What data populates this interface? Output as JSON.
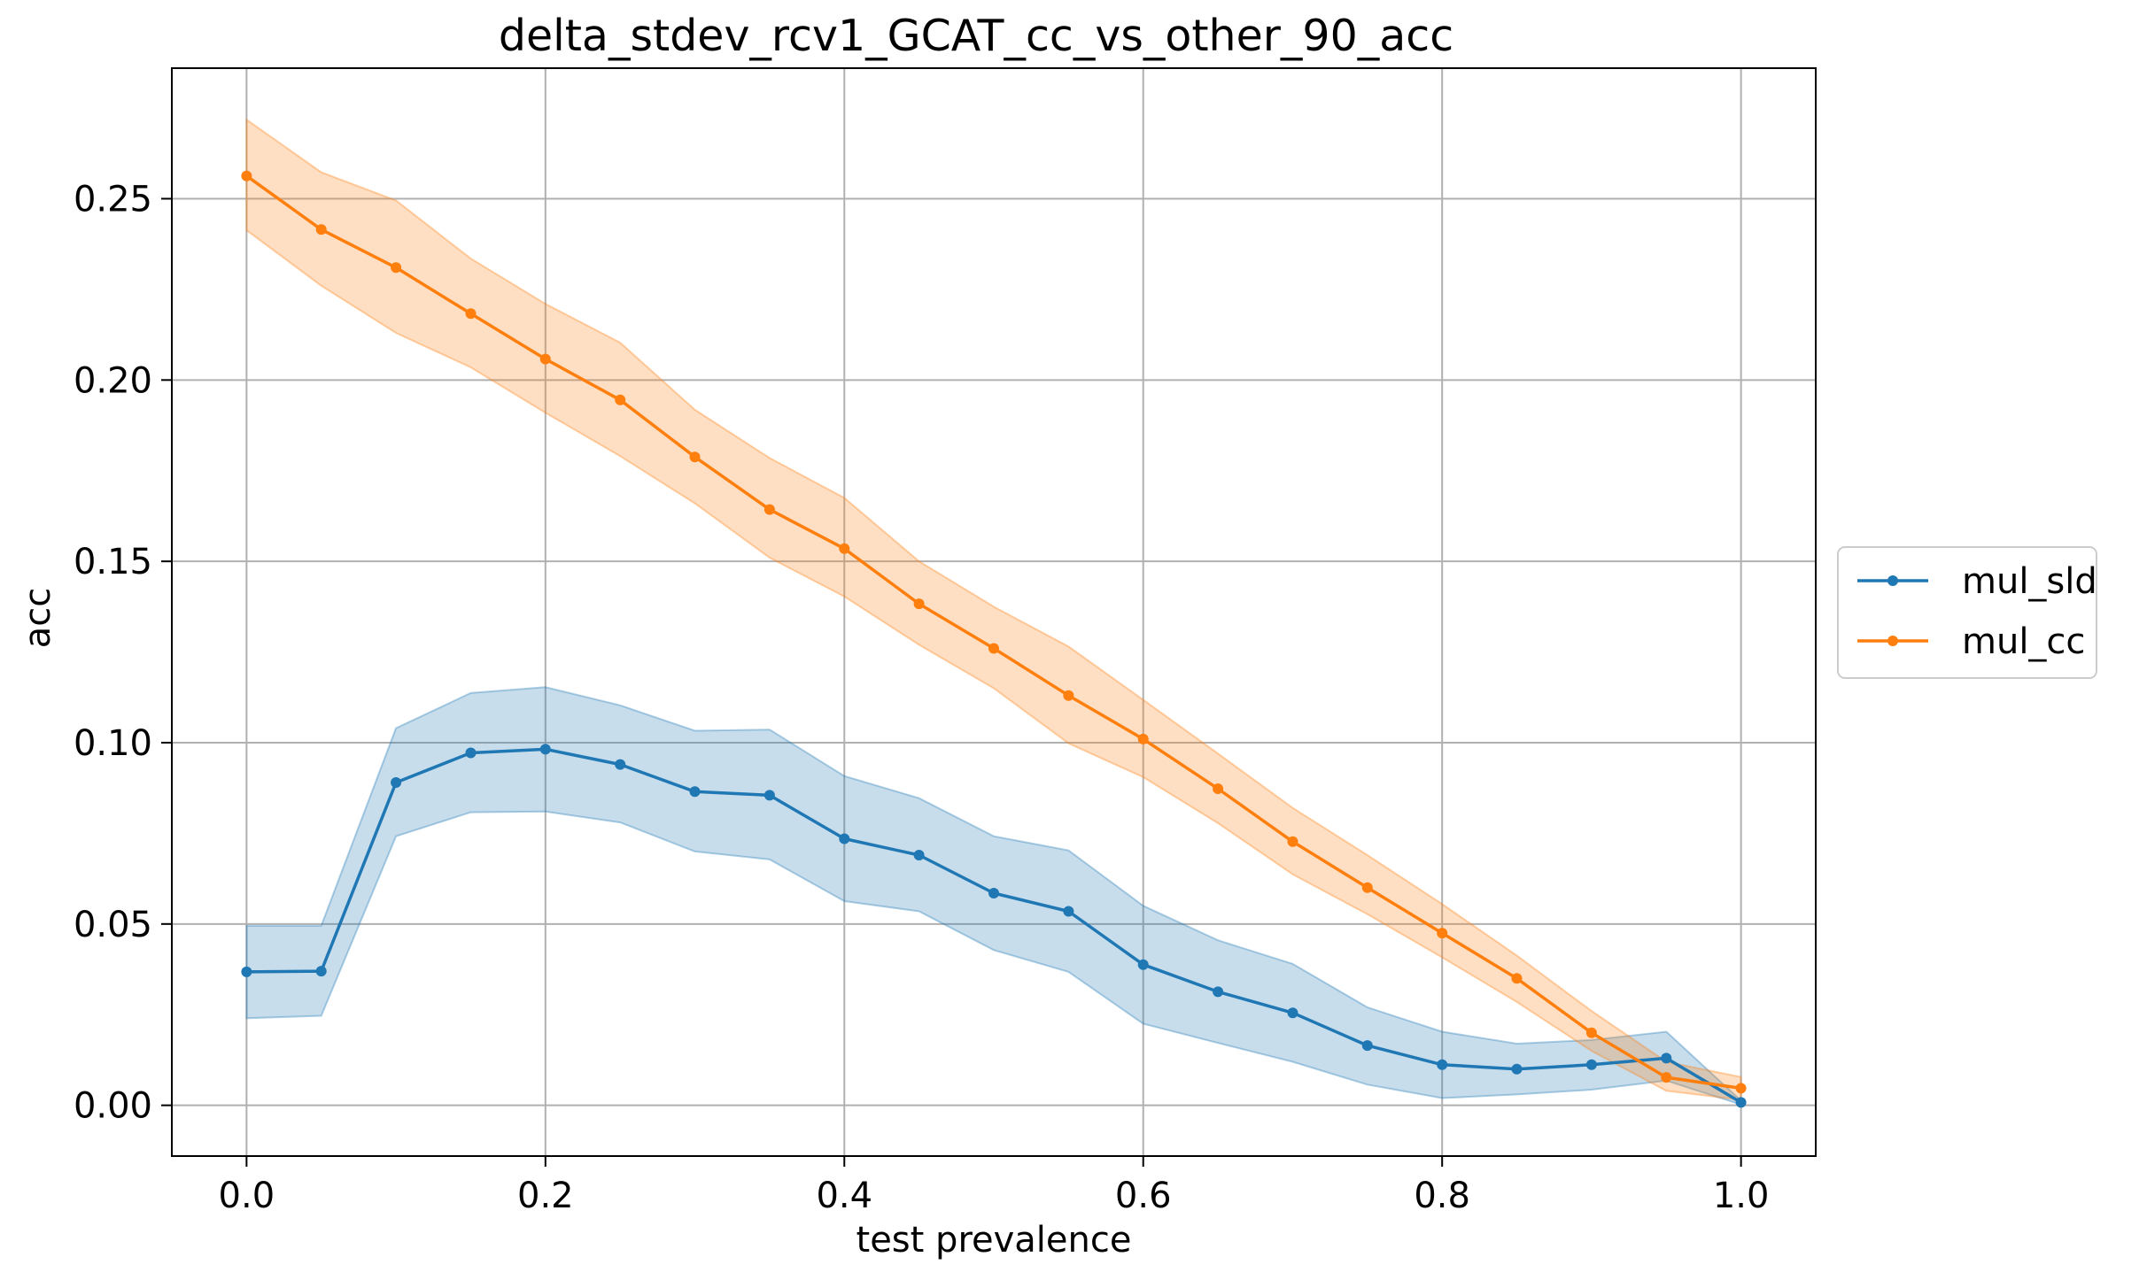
{
  "chart_data": {
    "type": "line",
    "title": "delta_stdev_rcv1_GCAT_cc_vs_other_90_acc",
    "xlabel": "test prevalence",
    "ylabel": "acc",
    "xlim": [
      -0.05,
      1.05
    ],
    "ylim": [
      -0.014,
      0.286
    ],
    "xticks": [
      0.0,
      0.2,
      0.4,
      0.6,
      0.8,
      1.0
    ],
    "xtick_labels": [
      "0.0",
      "0.2",
      "0.4",
      "0.6",
      "0.8",
      "1.0"
    ],
    "yticks": [
      0.0,
      0.05,
      0.1,
      0.15,
      0.2,
      0.25
    ],
    "ytick_labels": [
      "0.00",
      "0.05",
      "0.10",
      "0.15",
      "0.20",
      "0.25"
    ],
    "grid": true,
    "legend_position": "outside-right",
    "x": [
      0.0,
      0.05,
      0.1,
      0.15,
      0.2,
      0.25,
      0.3,
      0.35,
      0.4,
      0.45,
      0.5,
      0.55,
      0.6,
      0.65,
      0.7,
      0.75,
      0.8,
      0.85,
      0.9,
      0.95,
      1.0
    ],
    "series": [
      {
        "name": "mul_sld",
        "color": "#1f77b4",
        "values": [
          0.0368,
          0.037,
          0.089,
          0.0972,
          0.0982,
          0.094,
          0.0865,
          0.0855,
          0.0735,
          0.069,
          0.0585,
          0.0535,
          0.0388,
          0.0313,
          0.0255,
          0.0165,
          0.0112,
          0.01,
          0.0112,
          0.013,
          0.0008
        ],
        "band_low": [
          0.024,
          0.0247,
          0.0742,
          0.0808,
          0.081,
          0.078,
          0.07,
          0.0678,
          0.0563,
          0.0535,
          0.0428,
          0.0368,
          0.0225,
          0.0172,
          0.012,
          0.0057,
          0.002,
          0.003,
          0.0043,
          0.0068,
          0.0002
        ],
        "band_high": [
          0.0495,
          0.0495,
          0.104,
          0.1137,
          0.1153,
          0.1103,
          0.1033,
          0.1036,
          0.0908,
          0.0847,
          0.0742,
          0.0703,
          0.055,
          0.0455,
          0.039,
          0.027,
          0.0203,
          0.017,
          0.018,
          0.0203,
          0.0013
        ]
      },
      {
        "name": "mul_cc",
        "color": "#ff7f0e",
        "values": [
          0.2563,
          0.2415,
          0.231,
          0.2183,
          0.2058,
          0.1945,
          0.1788,
          0.1643,
          0.1535,
          0.1383,
          0.126,
          0.113,
          0.101,
          0.0873,
          0.0727,
          0.06,
          0.0475,
          0.035,
          0.02,
          0.0077,
          0.0047
        ],
        "band_low": [
          0.2413,
          0.226,
          0.213,
          0.2035,
          0.191,
          0.179,
          0.166,
          0.151,
          0.1403,
          0.127,
          0.115,
          0.0998,
          0.0905,
          0.0778,
          0.0637,
          0.0527,
          0.0408,
          0.0285,
          0.015,
          0.004,
          0.0015
        ],
        "band_high": [
          0.2718,
          0.2573,
          0.2495,
          0.2335,
          0.221,
          0.2103,
          0.1918,
          0.1785,
          0.1675,
          0.15,
          0.1375,
          0.1265,
          0.1118,
          0.097,
          0.082,
          0.069,
          0.0555,
          0.0413,
          0.026,
          0.012,
          0.0078
        ]
      }
    ]
  }
}
